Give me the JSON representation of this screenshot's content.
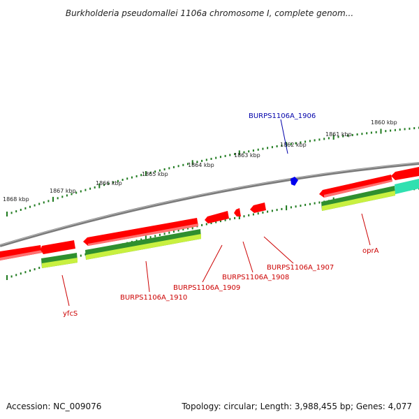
{
  "title": "Burkholderia pseudomallei 1106a chromosome I, complete genom...",
  "footer": {
    "accession": "Accession: NC_009076",
    "summary": "Topology: circular; Length: 3,988,455 bp; Genes: 4,077"
  },
  "colors": {
    "backbone": "#808080",
    "tick": "#1e7a1e",
    "forward_gene": "#ff0000",
    "forward_gene_light": "#ff7070",
    "cds_dark": "#2f8f2f",
    "cds_light": "#c8f040",
    "label_red": "#cc0000",
    "label_blue": "#0000aa",
    "highlight_gene": "#0000ee",
    "teal_feature": "#30e0b0"
  },
  "scale_labels": [
    "1860 kbp",
    "1861 kbp",
    "1862 kbp",
    "1863 kbp",
    "1864 kbp",
    "1865 kbp",
    "1866 kbp",
    "1867 kbp",
    "1868 kbp"
  ],
  "gene_labels": [
    {
      "id": "burps1106a-1906",
      "text": "BURPS1106A_1906",
      "color": "blue"
    },
    {
      "id": "opra",
      "text": "oprA",
      "color": "red"
    },
    {
      "id": "burps1106a-1907",
      "text": "BURPS1106A_1907",
      "color": "red"
    },
    {
      "id": "burps1106a-1908",
      "text": "BURPS1106A_1908",
      "color": "red"
    },
    {
      "id": "burps1106a-1909",
      "text": "BURPS1106A_1909",
      "color": "red"
    },
    {
      "id": "burps1106a-1910",
      "text": "BURPS1106A_1910",
      "color": "red"
    },
    {
      "id": "yfcs",
      "text": "yfcS",
      "color": "red"
    }
  ]
}
